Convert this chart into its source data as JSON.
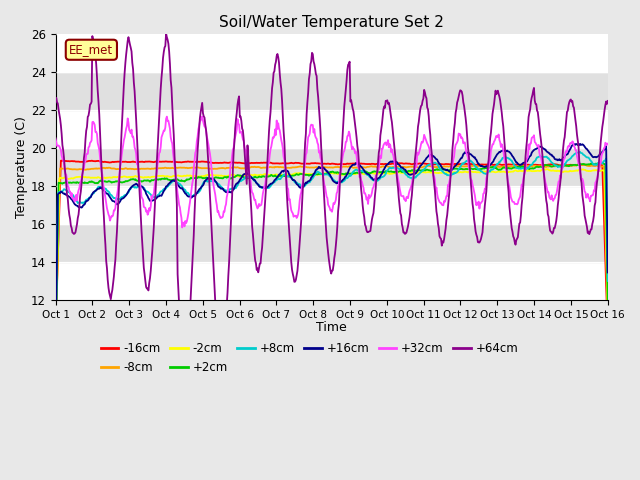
{
  "title": "Soil/Water Temperature Set 2",
  "xlabel": "Time",
  "ylabel": "Temperature (C)",
  "ylim": [
    12,
    26
  ],
  "xlim": [
    0,
    15
  ],
  "xtick_labels": [
    "Oct 1",
    "Oct 2",
    "Oct 3",
    "Oct 4",
    "Oct 5",
    "Oct 6",
    "Oct 7",
    "Oct 8",
    "Oct 9",
    "Oct 10",
    "Oct 11",
    "Oct 12",
    "Oct 13",
    "Oct 14",
    "Oct 15",
    "Oct 16"
  ],
  "ytick_vals": [
    12,
    14,
    16,
    18,
    20,
    22,
    24,
    26
  ],
  "annotation_text": "EE_met",
  "annotation_dark_color": "#8B0000",
  "annotation_bg": "#FFFF99",
  "bg_color": "#E8E8E8",
  "band_colors": [
    "#FFFFFF",
    "#E0E0E0"
  ],
  "series_colors": {
    "-16cm": "#FF0000",
    "-8cm": "#FFA500",
    "-2cm": "#FFFF00",
    "+2cm": "#00CC00",
    "+8cm": "#00CCCC",
    "+16cm": "#00008B",
    "+32cm": "#FF44FF",
    "+64cm": "#8B008B"
  },
  "figsize": [
    6.4,
    4.8
  ],
  "dpi": 100
}
